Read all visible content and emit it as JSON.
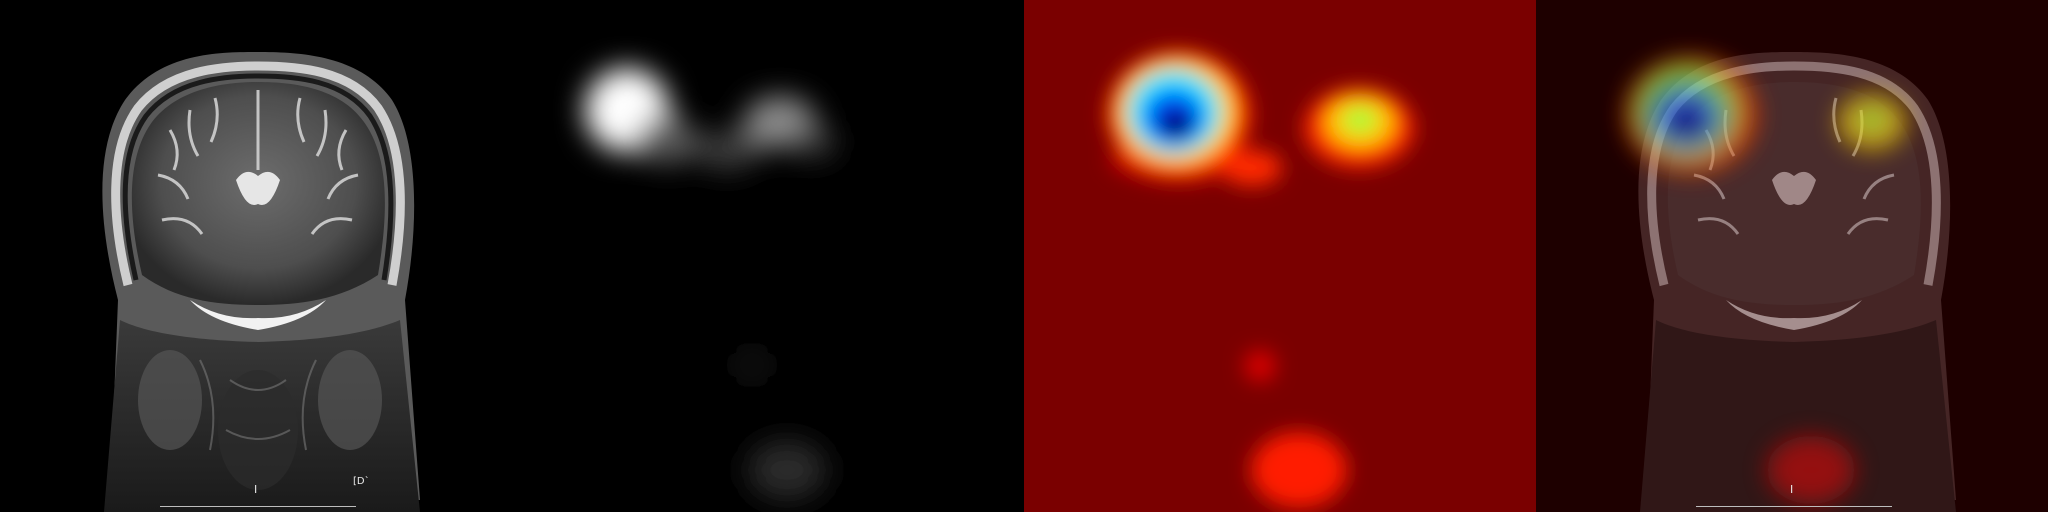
{
  "panels": [
    {
      "id": "mri-coronal",
      "kind": "grayscale-mri"
    },
    {
      "id": "saliency-gray",
      "kind": "grayscale-heatmap"
    },
    {
      "id": "saliency-jet",
      "kind": "jet-colormap-heatmap"
    },
    {
      "id": "overlay",
      "kind": "heatmap-overlay-on-mri"
    }
  ],
  "annotations": {
    "orientation_marker": "I",
    "corner_marker": "[D`"
  },
  "colormap": {
    "background": "#7a0000",
    "hot": "#ff2a00",
    "warm": "#ffcc00",
    "mid": "#00e0ff",
    "cold": "#00007a"
  }
}
